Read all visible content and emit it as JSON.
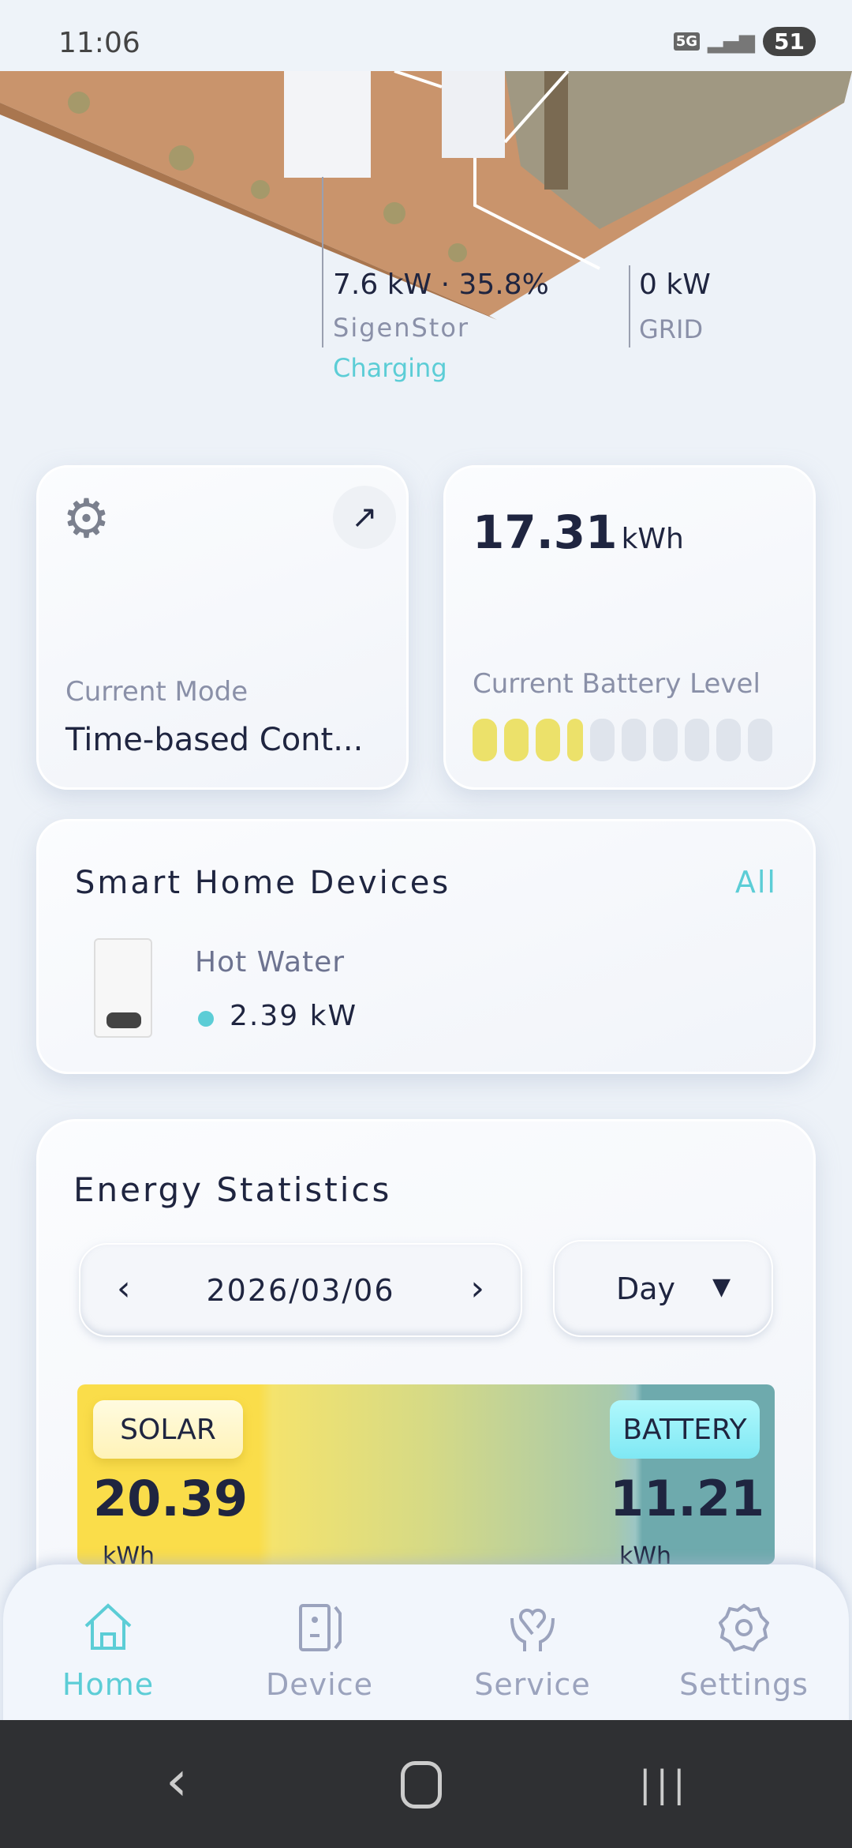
{
  "status_bar": {
    "time": "11:06",
    "network": "5G",
    "battery": "51"
  },
  "flow": {
    "sigenstor_value": "7.6 kW · 35.8%",
    "sigenstor_label": "SigenStor",
    "sigenstor_status": "Charging",
    "grid_value": "0 kW",
    "grid_label": "GRID"
  },
  "mode_card": {
    "label": "Current Mode",
    "value": "Time-based Cont..."
  },
  "battery_card": {
    "value": "17.31",
    "unit": "kWh",
    "label": "Current Battery Level",
    "level_percent": 35.8
  },
  "smart_home": {
    "title": "Smart Home Devices",
    "all_link": "All",
    "devices": [
      {
        "name": "Hot Water",
        "power": "2.39 kW"
      }
    ]
  },
  "energy": {
    "title": "Energy Statistics",
    "date": "2026/03/06",
    "period": "Day",
    "solar": {
      "label": "SOLAR",
      "value": "20.39",
      "unit": "kWh"
    },
    "battery": {
      "label": "BATTERY",
      "value": "11.21",
      "unit": "kWh"
    }
  },
  "bottom_nav": {
    "items": [
      {
        "label": "Home",
        "active": true
      },
      {
        "label": "Device"
      },
      {
        "label": "Service"
      },
      {
        "label": "Settings"
      }
    ]
  },
  "colors": {
    "accent": "#5ccdd6",
    "solar": "#fadd4a",
    "battery": "#6eaaad",
    "battery_bar": "#ece16a"
  }
}
